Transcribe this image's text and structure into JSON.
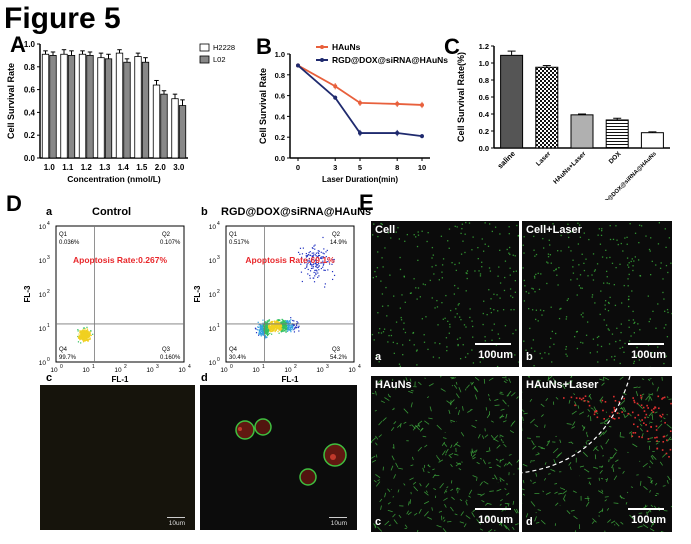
{
  "figure_title": "Figure 5",
  "panels": {
    "A": "A",
    "B": "B",
    "C": "C",
    "D": "D",
    "E": "E"
  },
  "chart_data": [
    {
      "type": "bar",
      "panel": "A",
      "categories": [
        "1.0",
        "1.1",
        "1.2",
        "1.3",
        "1.4",
        "1.5",
        "2.0",
        "3.0"
      ],
      "series": [
        {
          "name": "H2228",
          "values": [
            0.91,
            0.91,
            0.91,
            0.88,
            0.92,
            0.89,
            0.64,
            0.52
          ],
          "errors": [
            0.03,
            0.04,
            0.03,
            0.04,
            0.03,
            0.03,
            0.04,
            0.04
          ],
          "color": "#ffffff"
        },
        {
          "name": "L02",
          "values": [
            0.9,
            0.9,
            0.9,
            0.87,
            0.84,
            0.84,
            0.56,
            0.46
          ],
          "errors": [
            0.03,
            0.04,
            0.03,
            0.04,
            0.03,
            0.04,
            0.03,
            0.05
          ],
          "color": "#888888"
        }
      ],
      "xlabel": "Concentration (nmol/L)",
      "ylabel": "Cell Survival Rate",
      "ylim": [
        0,
        1.0
      ],
      "yticks": [
        "0.0",
        "0.2",
        "0.4",
        "0.6",
        "0.8",
        "1.0"
      ],
      "legend": "top-right"
    },
    {
      "type": "line",
      "panel": "B",
      "x": [
        0,
        3,
        5,
        8,
        10
      ],
      "xticks": [
        "0",
        "3",
        "5",
        "8",
        "10"
      ],
      "series": [
        {
          "name": "HAuNs",
          "values": [
            0.89,
            0.69,
            0.53,
            0.52,
            0.51
          ],
          "errors": [
            0.02,
            0.03,
            0.03,
            0.03,
            0.03
          ],
          "color": "#e8603c"
        },
        {
          "name": "RGD@DOX@siRNA@HAuNs",
          "values": [
            0.89,
            0.58,
            0.24,
            0.24,
            0.21
          ],
          "errors": [
            0.02,
            0.02,
            0.03,
            0.03,
            0.02
          ],
          "color": "#1f2a6e"
        }
      ],
      "xlabel": "Laser Duration(min)",
      "ylabel": "Cell Survival Rate",
      "ylim": [
        0,
        1.0
      ],
      "yticks": [
        "0.0",
        "0.2",
        "0.4",
        "0.6",
        "0.8",
        "1.0"
      ],
      "legend": "top-right"
    },
    {
      "type": "bar",
      "panel": "C",
      "categories": [
        "saline",
        "Laser",
        "HAuNs+Laser",
        "DOX",
        "RGD@DOX@siRNA@HAuNs"
      ],
      "values": [
        1.09,
        0.95,
        0.39,
        0.33,
        0.18
      ],
      "errors": [
        0.05,
        0.02,
        0.01,
        0.02,
        0.01
      ],
      "ylabel": "Cell Survival Rate(%)",
      "ylim": [
        0,
        1.2
      ],
      "yticks": [
        "0.0",
        "0.2",
        "0.4",
        "0.6",
        "0.8",
        "1.0",
        "1.2"
      ]
    }
  ],
  "flow": [
    {
      "sub": "a",
      "title": "Control",
      "rate": "Apoptosis Rate:0.267%",
      "q1_name": "Q1",
      "q1": "0.036%",
      "q2_name": "Q2",
      "q2": "0.107%",
      "q3_name": "Q3",
      "q3": "0.160%",
      "q4_name": "Q4",
      "q4": "99.7%",
      "xlabel": "FL-1",
      "ylabel": "FL-3"
    },
    {
      "sub": "b",
      "title": "RGD@DOX@siRNA@HAuNs",
      "rate": "Apoptosis Rate:69.1%",
      "q1_name": "Q1",
      "q1": "0.517%",
      "q2_name": "Q2",
      "q2": "14.9%",
      "q3_name": "Q3",
      "q3": "54.2%",
      "q4_name": "Q4",
      "q4": "30.4%",
      "xlabel": "FL-1",
      "ylabel": "FL-3"
    }
  ],
  "flow_axis": {
    "y_ticks": [
      "10",
      "10",
      "10",
      "10",
      "10"
    ],
    "y_exp": [
      "4",
      "3",
      "2",
      "1",
      "0"
    ],
    "x_ticks": [
      "10",
      "10",
      "10",
      "10",
      "10"
    ],
    "x_exp": [
      "0",
      "1",
      "2",
      "3",
      "4"
    ]
  },
  "micro_d": [
    {
      "sub": "c",
      "scale": "10um"
    },
    {
      "sub": "d",
      "scale": "10um"
    }
  ],
  "micro_e": [
    {
      "title": "Cell",
      "sub": "a",
      "scale": "100um"
    },
    {
      "title": "Cell+Laser",
      "sub": "b",
      "scale": "100um"
    },
    {
      "title": "HAuNs",
      "sub": "c",
      "scale": "100um"
    },
    {
      "title": "HAuNs+Laser",
      "sub": "d",
      "scale": "100um"
    }
  ],
  "colors": {
    "hauns": "#e8603c",
    "rgd": "#1f2a6e",
    "rate": "#e8262a",
    "green": "#4fd04f",
    "red": "#e03030"
  }
}
